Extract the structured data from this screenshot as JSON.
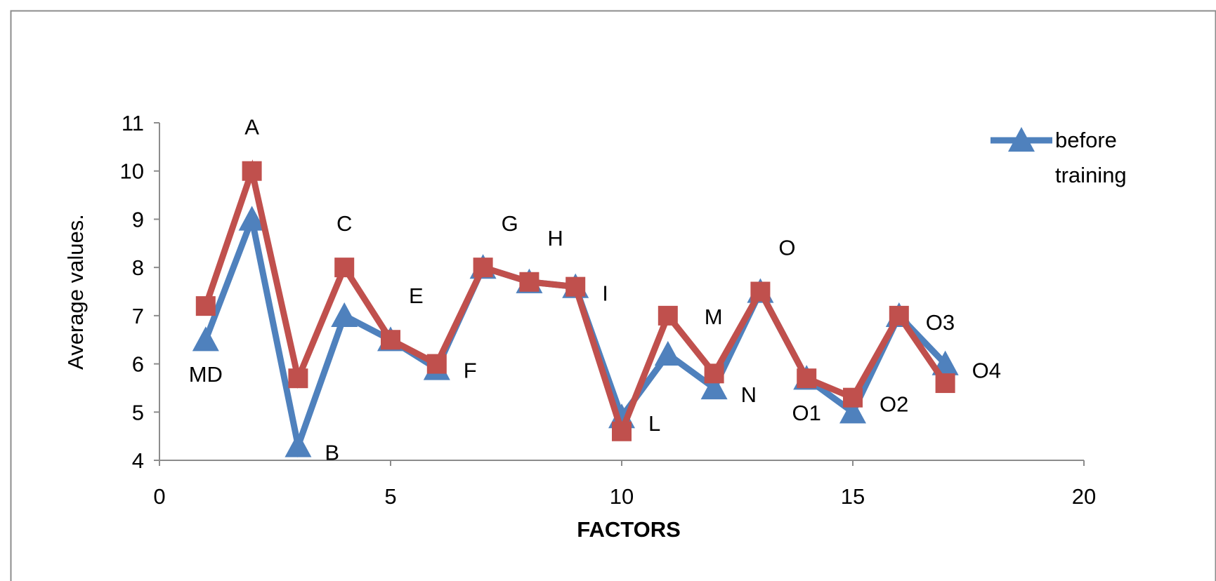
{
  "chart_data": {
    "type": "line",
    "title": "",
    "xlabel": "FACTORS",
    "ylabel": "Average values.",
    "xlim": [
      0,
      20
    ],
    "ylim": [
      4,
      11
    ],
    "x_ticks": [
      0,
      5,
      10,
      15,
      20
    ],
    "y_ticks": [
      4,
      5,
      6,
      7,
      8,
      9,
      10,
      11
    ],
    "grid": false,
    "legend_position": "top-right",
    "legend_entries": [
      "before training"
    ],
    "series": [
      {
        "name": "before training",
        "color": "#4F81BD",
        "marker": "triangle",
        "x": [
          1,
          2,
          3,
          4,
          5,
          6,
          7,
          8,
          9,
          10,
          11,
          12,
          13,
          14,
          15,
          16,
          17
        ],
        "y": [
          6.5,
          9.0,
          4.3,
          7.0,
          6.5,
          5.9,
          8.0,
          7.7,
          7.6,
          4.9,
          6.2,
          5.5,
          7.5,
          5.7,
          5.0,
          7.0,
          6.0
        ]
      },
      {
        "color": "#C0504D",
        "marker": "square",
        "x": [
          1,
          2,
          3,
          4,
          5,
          6,
          7,
          8,
          9,
          10,
          11,
          12,
          13,
          14,
          15,
          16,
          17
        ],
        "y": [
          7.2,
          10.0,
          5.7,
          8.0,
          6.5,
          6.0,
          8.0,
          7.7,
          7.6,
          4.6,
          7.0,
          5.8,
          7.5,
          5.7,
          5.3,
          7.0,
          5.6
        ]
      }
    ],
    "annotations": [
      {
        "text": "MD",
        "x": 1,
        "y": 6.5,
        "pos": "below"
      },
      {
        "text": "A",
        "x": 2,
        "y": 10.0,
        "pos": "above"
      },
      {
        "text": "B",
        "x": 3,
        "y": 4.3,
        "pos": "right"
      },
      {
        "text": "C",
        "x": 4,
        "y": 8.0,
        "pos": "above"
      },
      {
        "text": "E",
        "x": 5,
        "y": 6.5,
        "pos": "above-right"
      },
      {
        "text": "F",
        "x": 6,
        "y": 6.0,
        "pos": "right"
      },
      {
        "text": "G",
        "x": 7,
        "y": 8.0,
        "pos": "above-right"
      },
      {
        "text": "H",
        "x": 8,
        "y": 7.7,
        "pos": "above-right"
      },
      {
        "text": "I",
        "x": 9,
        "y": 7.6,
        "pos": "right"
      },
      {
        "text": "L",
        "x": 10,
        "y": 4.9,
        "pos": "right"
      },
      {
        "text": "M",
        "x": 11,
        "y": 7.0,
        "pos": "below-right"
      },
      {
        "text": "N",
        "x": 12,
        "y": 5.5,
        "pos": "right"
      },
      {
        "text": "O",
        "x": 13,
        "y": 7.5,
        "pos": "above-right"
      },
      {
        "text": "O1",
        "x": 14,
        "y": 5.7,
        "pos": "below"
      },
      {
        "text": "O2",
        "x": 15,
        "y": 5.3,
        "pos": "right"
      },
      {
        "text": "O3",
        "x": 16,
        "y": 7.0,
        "pos": "right"
      },
      {
        "text": "O4",
        "x": 17,
        "y": 6.0,
        "pos": "right"
      }
    ]
  }
}
